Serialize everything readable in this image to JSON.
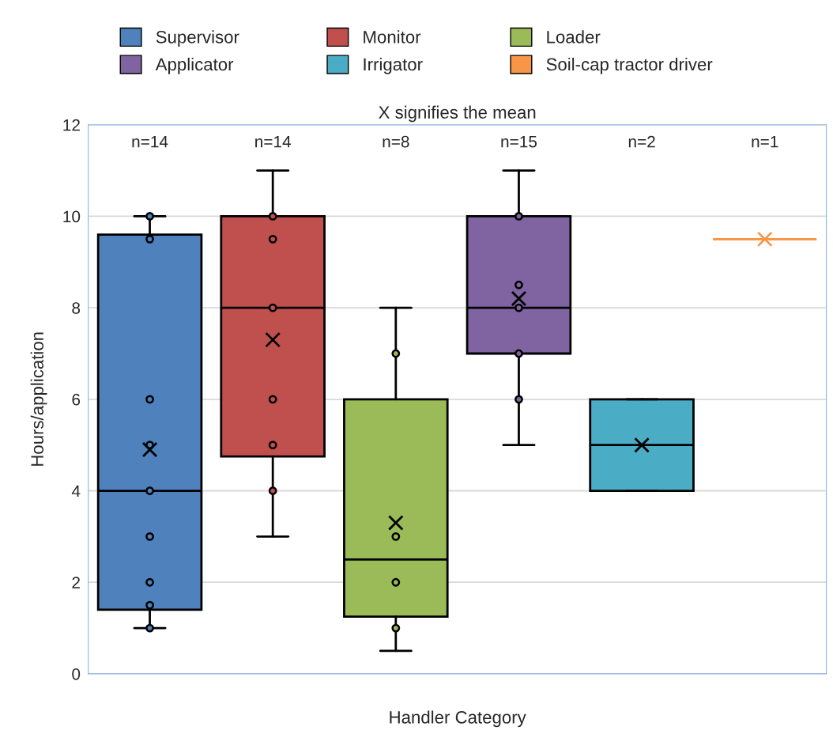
{
  "chart_data": {
    "type": "box",
    "subtitle": "X signifies the mean",
    "xlabel": "Handler Category",
    "ylabel": "Hours/application",
    "categories": [
      null,
      null,
      null,
      null,
      null,
      null
    ],
    "series": [
      {
        "name": "Supervisor",
        "color": "#4f81bd",
        "boxes": [
          {
            "low": 1,
            "q1": 1.4,
            "median": 4,
            "q3": 9.6,
            "high": 10,
            "mean": 4.9,
            "outliers": [
              10,
              9.5,
              6,
              5,
              4,
              3,
              2,
              1.5,
              1
            ]
          },
          null,
          null,
          null,
          null,
          null
        ]
      },
      {
        "name": "Monitor",
        "color": "#c0504d",
        "boxes": [
          null,
          {
            "low": 3,
            "q1": 4.75,
            "median": 8,
            "q3": 10,
            "high": 11,
            "mean": 7.3,
            "outliers": [
              10,
              9.5,
              8,
              6,
              5,
              4
            ]
          },
          null,
          null,
          null,
          null
        ]
      },
      {
        "name": "Loader",
        "color": "#9bbb59",
        "boxes": [
          null,
          null,
          {
            "low": 0.5,
            "q1": 1.25,
            "median": 2.5,
            "q3": 6,
            "high": 8,
            "mean": 3.3,
            "outliers": [
              7,
              3,
              2,
              1
            ]
          },
          null,
          null,
          null
        ]
      },
      {
        "name": "Applicator",
        "color": "#8064a2",
        "boxes": [
          null,
          null,
          null,
          {
            "low": 5,
            "q1": 7,
            "median": 8,
            "q3": 10,
            "high": 11,
            "mean": 8.2,
            "outliers": [
              10,
              8.5,
              8,
              7,
              6
            ]
          },
          null,
          null
        ]
      },
      {
        "name": "Irrigator",
        "color": "#4bacc6",
        "boxes": [
          null,
          null,
          null,
          null,
          {
            "low": 4,
            "q1": 4,
            "median": 5,
            "q3": 6,
            "high": 6,
            "mean": 5
          },
          null
        ]
      },
      {
        "name": "Soil-cap tractor driver",
        "color": "#f79646",
        "boxes": [
          null,
          null,
          null,
          null,
          null,
          {
            "low": 9.5,
            "q1": 9.5,
            "median": 9.5,
            "q3": 9.5,
            "high": 9.5,
            "mean": 9.5
          }
        ]
      }
    ],
    "annotations": [
      "n=14",
      "n=14",
      "n=8",
      "n=15",
      "n=2",
      "n=1"
    ],
    "ylim": [
      0,
      12
    ],
    "yticks": [
      0,
      2,
      4,
      6,
      8,
      10,
      12
    ],
    "grid": "y",
    "legend": "top"
  }
}
